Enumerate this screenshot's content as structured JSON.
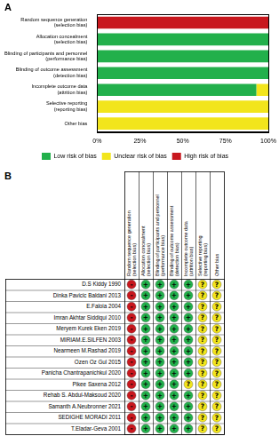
{
  "panel_labels": [
    "A",
    "B"
  ],
  "chart_data": {
    "type": "bar",
    "orientation": "horizontal",
    "stacked": true,
    "grid": false,
    "legend": "bottom",
    "categories": [
      "Random sequence generation (selection bias)",
      "Allocation concealment (selection bias)",
      "Blinding of participants and personnel (performance bias)",
      "Blinding of outcome assessment (detection bias)",
      "Incomplete outcome data (attrition bias)",
      "Selective reporting (reporting bias)",
      "Other bias"
    ],
    "series": [
      {
        "name": "Low risk of bias",
        "color": "#22b04b",
        "values": [
          0,
          100,
          100,
          100,
          93,
          0,
          0
        ]
      },
      {
        "name": "Unclear risk of bias",
        "color": "#f2e51c",
        "values": [
          0,
          0,
          0,
          0,
          7,
          100,
          100
        ]
      },
      {
        "name": "High risk of bias",
        "color": "#c8171e",
        "values": [
          100,
          0,
          0,
          0,
          0,
          0,
          0
        ]
      }
    ],
    "xlim": [
      0,
      100
    ],
    "xticks": [
      {
        "value": 0,
        "label": "0%"
      },
      {
        "value": 25,
        "label": "25%"
      },
      {
        "value": 50,
        "label": "50%"
      },
      {
        "value": 75,
        "label": "75%"
      },
      {
        "value": 100,
        "label": "100%"
      }
    ]
  },
  "summary_table": {
    "symbols": [
      "+",
      "?",
      "-"
    ],
    "rows": [
      {
        "study": "D.S Kiddy 1990",
        "judgements": [
          "-",
          "+",
          "+",
          "+",
          "+",
          "?",
          "?"
        ]
      },
      {
        "study": "Dinka Pavicic Baldani 2013",
        "judgements": [
          "-",
          "+",
          "+",
          "+",
          "+",
          "?",
          "?"
        ]
      },
      {
        "study": "E.Faloia 2004",
        "judgements": [
          "-",
          "+",
          "+",
          "+",
          "+",
          "?",
          "?"
        ]
      },
      {
        "study": "Imran Akhtar Siddiqui 2010",
        "judgements": [
          "-",
          "+",
          "+",
          "+",
          "+",
          "?",
          "?"
        ]
      },
      {
        "study": "Meryem Kurek Eken 2019",
        "judgements": [
          "-",
          "+",
          "+",
          "+",
          "+",
          "?",
          "?"
        ]
      },
      {
        "study": "MIRIAM.E.SILFEN 2003",
        "judgements": [
          "-",
          "+",
          "+",
          "+",
          "+",
          "?",
          "?"
        ]
      },
      {
        "study": "Nearmeen M.Rashad 2019",
        "judgements": [
          "-",
          "+",
          "+",
          "+",
          "+",
          "?",
          "?"
        ]
      },
      {
        "study": "Ozen Oz Gul 2015",
        "judgements": [
          "-",
          "+",
          "+",
          "+",
          "+",
          "?",
          "?"
        ]
      },
      {
        "study": "Panicha Chantrapanichkul 2020",
        "judgements": [
          "-",
          "+",
          "+",
          "+",
          "+",
          "?",
          "?"
        ]
      },
      {
        "study": "Pikee Saxena 2012",
        "judgements": [
          "-",
          "+",
          "+",
          "+",
          "?",
          "?",
          "?"
        ]
      },
      {
        "study": "Rehab S. Abdul-Maksoud 2020",
        "judgements": [
          "-",
          "+",
          "+",
          "+",
          "+",
          "?",
          "?"
        ]
      },
      {
        "study": "Samanth A.Neubronner 2021",
        "judgements": [
          "-",
          "+",
          "+",
          "+",
          "+",
          "?",
          "?"
        ]
      },
      {
        "study": "SEDIGHE MORADI 2011",
        "judgements": [
          "-",
          "+",
          "+",
          "+",
          "+",
          "?",
          "?"
        ]
      },
      {
        "study": "T.Eladar-Geva 2001",
        "judgements": [
          "-",
          "+",
          "+",
          "+",
          "+",
          "?",
          "?"
        ]
      }
    ]
  }
}
